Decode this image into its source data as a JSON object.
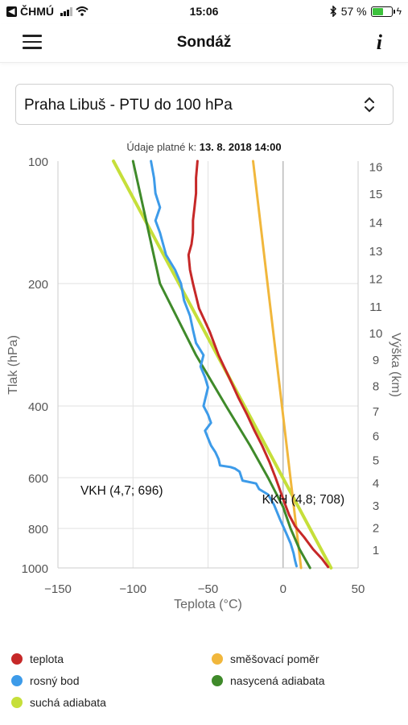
{
  "status_bar": {
    "carrier": "ČHMÚ",
    "time": "15:06",
    "battery_percent": "57 %",
    "battery_level": 0.57
  },
  "header": {
    "title": "Sondáž",
    "info_label": "i"
  },
  "station_select": {
    "value": "Praha Libuš - PTU do 100 hPa"
  },
  "valid_info": {
    "label": "Údaje platné k:",
    "value": "13. 8. 2018 14:00"
  },
  "colors": {
    "teplota": "#c62828",
    "rosny_bod": "#3d9be9",
    "suchá_adiabata": "#c6df3a",
    "smesovaci_pomer": "#f1b73c",
    "nasycena_adiabata": "#3f8a2a"
  },
  "chart_data": {
    "type": "line",
    "xlabel": "Teplota (°C)",
    "ylabel": "Tlak (hPa)",
    "y2label": "Výška (km)",
    "xlim": [
      -150,
      50
    ],
    "ylim": [
      1000,
      100
    ],
    "y_scale": "log",
    "xticks": [
      "−150",
      "−100",
      "−50",
      "0",
      "50"
    ],
    "yticks": [
      {
        "value": 100,
        "label": "100"
      },
      {
        "value": 200,
        "label": "200"
      },
      {
        "value": 400,
        "label": "400"
      },
      {
        "value": 600,
        "label": "600"
      },
      {
        "value": 800,
        "label": "800"
      },
      {
        "value": 1000,
        "label": "1000"
      }
    ],
    "height_ticks": [
      {
        "pressure": 900,
        "label": "1"
      },
      {
        "pressure": 795,
        "label": "2"
      },
      {
        "pressure": 701,
        "label": "3"
      },
      {
        "pressure": 617,
        "label": "4"
      },
      {
        "pressure": 541,
        "label": "5"
      },
      {
        "pressure": 472,
        "label": "6"
      },
      {
        "pressure": 411,
        "label": "7"
      },
      {
        "pressure": 356,
        "label": "8"
      },
      {
        "pressure": 307,
        "label": "9"
      },
      {
        "pressure": 264,
        "label": "10"
      },
      {
        "pressure": 227,
        "label": "11"
      },
      {
        "pressure": 194,
        "label": "12"
      },
      {
        "pressure": 166,
        "label": "13"
      },
      {
        "pressure": 141,
        "label": "14"
      },
      {
        "pressure": 120,
        "label": "15"
      },
      {
        "pressure": 103,
        "label": "16"
      }
    ],
    "grid": true,
    "annotations": [
      {
        "text": "VKH (4,7; 696)",
        "x": -135,
        "p": 660
      },
      {
        "text": "KKH (4,8; 708)",
        "x": -14,
        "p": 695
      }
    ],
    "series": [
      {
        "name": "teplota",
        "points": [
          [
            30,
            995
          ],
          [
            26,
            950
          ],
          [
            20,
            900
          ],
          [
            14,
            840
          ],
          [
            8,
            790
          ],
          [
            4,
            740
          ],
          [
            2,
            708
          ],
          [
            -1,
            660
          ],
          [
            -5,
            600
          ],
          [
            -9,
            550
          ],
          [
            -14,
            500
          ],
          [
            -19,
            460
          ],
          [
            -24,
            420
          ],
          [
            -30,
            380
          ],
          [
            -36,
            340
          ],
          [
            -43,
            300
          ],
          [
            -49,
            262
          ],
          [
            -56,
            230
          ],
          [
            -60,
            200
          ],
          [
            -62,
            185
          ],
          [
            -63,
            170
          ],
          [
            -61,
            160
          ],
          [
            -60,
            150
          ],
          [
            -60,
            140
          ],
          [
            -59,
            130
          ],
          [
            -58,
            120
          ],
          [
            -58,
            110
          ],
          [
            -57,
            100
          ]
        ]
      },
      {
        "name": "rosný bod",
        "points": [
          [
            9,
            990
          ],
          [
            8,
            960
          ],
          [
            7,
            920
          ],
          [
            5,
            870
          ],
          [
            2,
            820
          ],
          [
            -2,
            760
          ],
          [
            -6,
            700
          ],
          [
            -10,
            660
          ],
          [
            -16,
            640
          ],
          [
            -18,
            620
          ],
          [
            -27,
            610
          ],
          [
            -29,
            580
          ],
          [
            -32,
            570
          ],
          [
            -35,
            565
          ],
          [
            -42,
            560
          ],
          [
            -43,
            540
          ],
          [
            -45,
            520
          ],
          [
            -48,
            500
          ],
          [
            -50,
            480
          ],
          [
            -52,
            460
          ],
          [
            -48,
            440
          ],
          [
            -50,
            420
          ],
          [
            -53,
            400
          ],
          [
            -50,
            360
          ],
          [
            -52,
            340
          ],
          [
            -55,
            320
          ],
          [
            -53,
            300
          ],
          [
            -58,
            280
          ],
          [
            -60,
            260
          ],
          [
            -62,
            240
          ],
          [
            -66,
            220
          ],
          [
            -68,
            200
          ],
          [
            -72,
            185
          ],
          [
            -78,
            170
          ],
          [
            -82,
            150
          ],
          [
            -85,
            140
          ],
          [
            -82,
            130
          ],
          [
            -85,
            120
          ],
          [
            -86,
            110
          ],
          [
            -88,
            100
          ]
        ]
      },
      {
        "name": "suchá adiabata",
        "points": [
          [
            32,
            1000
          ],
          [
            -113,
            100
          ]
        ]
      },
      {
        "name": "směšovací poměr",
        "points": [
          [
            12,
            1000
          ],
          [
            -20,
            100
          ]
        ]
      },
      {
        "name": "nasycená adiabata",
        "points": [
          [
            18,
            1000
          ],
          [
            11,
            900
          ],
          [
            5,
            800
          ],
          [
            0,
            708
          ],
          [
            -10,
            600
          ],
          [
            -22,
            500
          ],
          [
            -38,
            400
          ],
          [
            -58,
            300
          ],
          [
            -82,
            200
          ],
          [
            -100,
            100
          ]
        ]
      }
    ]
  },
  "legend": [
    {
      "label": "teplota",
      "color": "#c62828"
    },
    {
      "label": "směšovací poměr",
      "color": "#f1b73c"
    },
    {
      "label": "rosný bod",
      "color": "#3d9be9"
    },
    {
      "label": "nasycená adiabata",
      "color": "#3f8a2a"
    },
    {
      "label": "suchá adiabata",
      "color": "#c6df3a"
    }
  ]
}
